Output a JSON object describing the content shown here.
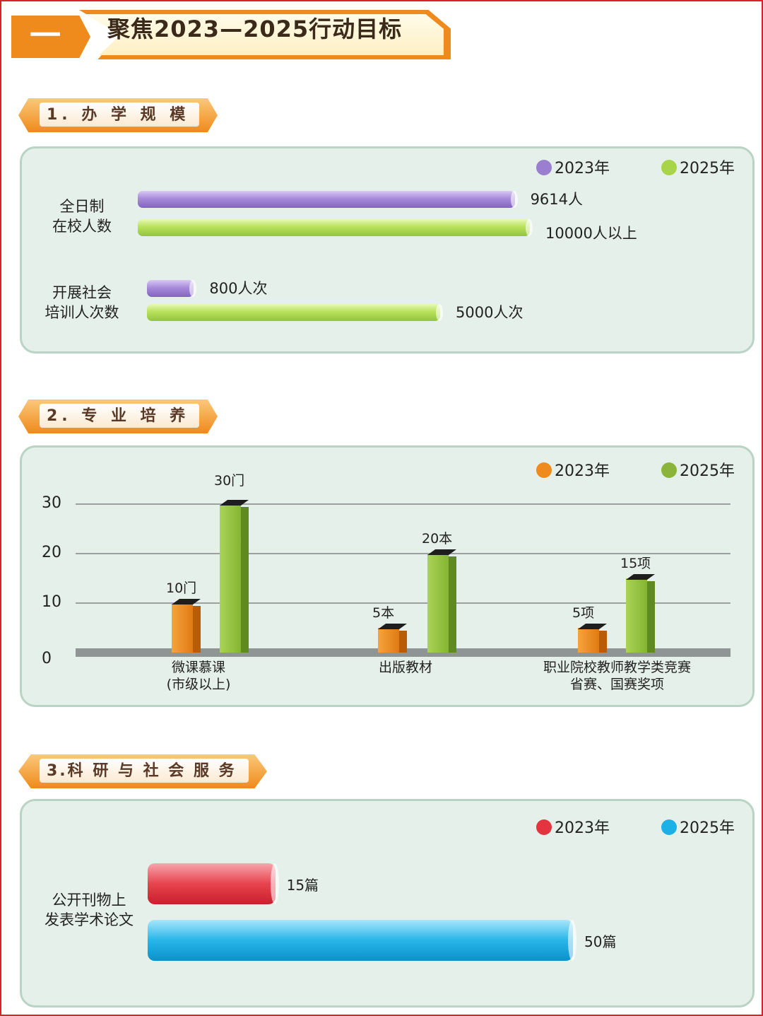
{
  "header": {
    "number": "一",
    "title": "聚焦2023—2025行动目标"
  },
  "colors": {
    "orange": "#ef8a1c",
    "purple_2023": "#9a7fd0",
    "green_2025": "#a8d44a",
    "orange_2023": "#ef8a1c",
    "green_2025_dark": "#8bb53a",
    "red_2023": "#e53340",
    "blue_2025": "#1cb1e6"
  },
  "sections": [
    {
      "label": "1. 办 学 规 模",
      "legend": [
        "2023年",
        "2025年"
      ],
      "categories": [
        {
          "name_line1": "全日制",
          "name_line2": "在校人数",
          "labels": [
            "9614人",
            "10000人以上"
          ]
        },
        {
          "name_line1": "开展社会",
          "name_line2": "培训人次数",
          "labels": [
            "800人次",
            "5000人次"
          ]
        }
      ]
    },
    {
      "label": "2. 专 业 培 养",
      "legend": [
        "2023年",
        "2025年"
      ],
      "categories": [
        {
          "name_line1": "微课慕课",
          "name_line2": "(市级以上)",
          "labels": [
            "10门",
            "30门"
          ]
        },
        {
          "name_line1": "出版教材",
          "name_line2": "",
          "labels": [
            "5本",
            "20本"
          ]
        },
        {
          "name_line1": "职业院校教师教学类竞赛",
          "name_line2": "省赛、国赛奖项",
          "labels": [
            "5项",
            "15项"
          ]
        }
      ],
      "yticks": [
        "0",
        "10",
        "20",
        "30"
      ]
    },
    {
      "label": "3.科 研 与 社 会 服 务",
      "legend": [
        "2023年",
        "2025年"
      ],
      "categories": [
        {
          "name_line1": "公开刊物上",
          "name_line2": "发表学术论文",
          "labels": [
            "15篇",
            "50篇"
          ]
        }
      ]
    }
  ],
  "chart_data": [
    {
      "type": "bar",
      "orientation": "horizontal",
      "categories": [
        "全日制在校人数",
        "开展社会培训人次数"
      ],
      "series": [
        {
          "name": "2023年",
          "values": [
            9614,
            800
          ]
        },
        {
          "name": "2025年",
          "values": [
            10000,
            5000
          ]
        }
      ],
      "legend": "top-right"
    },
    {
      "type": "bar",
      "categories": [
        "微课慕课(市级以上)",
        "出版教材",
        "职业院校教师教学类竞赛省赛、国赛奖项"
      ],
      "series": [
        {
          "name": "2023年",
          "values": [
            10,
            5,
            5
          ]
        },
        {
          "name": "2025年",
          "values": [
            30,
            20,
            15
          ]
        }
      ],
      "ylim": [
        0,
        30
      ],
      "grid": true,
      "legend": "top-right"
    },
    {
      "type": "bar",
      "orientation": "horizontal",
      "categories": [
        "公开刊物上发表学术论文"
      ],
      "series": [
        {
          "name": "2023年",
          "values": [
            15
          ]
        },
        {
          "name": "2025年",
          "values": [
            50
          ]
        }
      ],
      "legend": "top-right"
    }
  ]
}
